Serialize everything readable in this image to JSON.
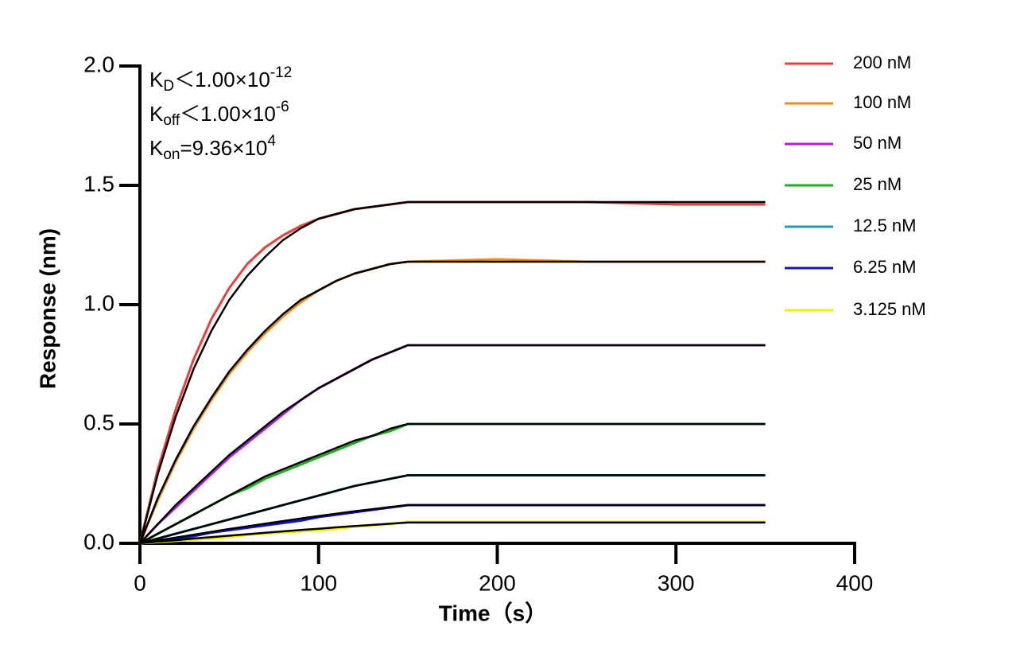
{
  "chart_data": {
    "type": "line",
    "x_label": "Time（s）",
    "y_label": "Response (nm)",
    "xlim": [
      0,
      400
    ],
    "ylim": [
      0,
      2.0
    ],
    "xticks": [
      0,
      100,
      200,
      300,
      400
    ],
    "yticks": [
      {
        "value": 0,
        "label": "0.0"
      },
      0.5,
      {
        "value": 1.0,
        "label": "1.0"
      },
      1.5,
      {
        "value": 2.0,
        "label": "2.0"
      }
    ],
    "annotations": [
      {
        "k": "K",
        "sub": "D",
        "rel": "＜1.00×10",
        "sup": "-12"
      },
      {
        "k": "K",
        "sub": "off",
        "rel": "＜1.00×10",
        "sup": "-6"
      },
      {
        "k": "K",
        "sub": "on",
        "rel": "=9.36×10",
        "sup": "4"
      }
    ],
    "x": [
      0,
      10,
      20,
      30,
      40,
      50,
      60,
      70,
      80,
      90,
      100,
      110,
      120,
      130,
      140,
      150,
      200,
      250,
      300,
      350
    ],
    "series": [
      {
        "name": "200 nM",
        "color": "#e8413c",
        "values": [
          0,
          0.31,
          0.56,
          0.77,
          0.94,
          1.07,
          1.17,
          1.24,
          1.29,
          1.33,
          1.36,
          1.38,
          1.4,
          1.41,
          1.42,
          1.43,
          1.43,
          1.43,
          1.42,
          1.42
        ]
      },
      {
        "name": "100 nM",
        "color": "#f08a1c",
        "values": [
          0,
          0.18,
          0.34,
          0.48,
          0.6,
          0.71,
          0.8,
          0.88,
          0.95,
          1.01,
          1.06,
          1.1,
          1.13,
          1.15,
          1.17,
          1.18,
          1.19,
          1.18,
          1.18,
          1.18
        ]
      },
      {
        "name": "50 nM",
        "color": "#b020d8",
        "values": [
          0,
          0.08,
          0.15,
          0.22,
          0.29,
          0.36,
          0.42,
          0.48,
          0.54,
          0.6,
          0.65,
          0.69,
          0.73,
          0.77,
          0.8,
          0.83,
          0.83,
          0.83,
          0.83,
          0.83
        ]
      },
      {
        "name": "25 nM",
        "color": "#1fae1f",
        "values": [
          0,
          0.04,
          0.08,
          0.12,
          0.16,
          0.2,
          0.23,
          0.27,
          0.3,
          0.33,
          0.36,
          0.39,
          0.42,
          0.45,
          0.47,
          0.5,
          0.5,
          0.5,
          0.5,
          0.5
        ]
      },
      {
        "name": "12.5 nM",
        "color": "#1e9bb5",
        "values": [
          0,
          0.02,
          0.04,
          0.06,
          0.08,
          0.1,
          0.12,
          0.14,
          0.16,
          0.18,
          0.2,
          0.22,
          0.24,
          0.255,
          0.27,
          0.285,
          0.285,
          0.285,
          0.285,
          0.285
        ]
      },
      {
        "name": "6.25 nM",
        "color": "#1010d0",
        "values": [
          0,
          0.01,
          0.02,
          0.03,
          0.045,
          0.055,
          0.065,
          0.075,
          0.085,
          0.095,
          0.11,
          0.12,
          0.13,
          0.14,
          0.15,
          0.16,
          0.16,
          0.16,
          0.16,
          0.16
        ]
      },
      {
        "name": "3.125 nM",
        "color": "#f0f000",
        "values": [
          0,
          0.005,
          0.01,
          0.015,
          0.02,
          0.025,
          0.035,
          0.04,
          0.045,
          0.05,
          0.055,
          0.06,
          0.07,
          0.075,
          0.08,
          0.09,
          0.09,
          0.09,
          0.09,
          0.09
        ]
      }
    ],
    "fits": [
      {
        "color": "#000000",
        "values": [
          0,
          0.29,
          0.53,
          0.73,
          0.89,
          1.02,
          1.12,
          1.2,
          1.27,
          1.32,
          1.36,
          1.38,
          1.4,
          1.41,
          1.42,
          1.43,
          1.43,
          1.43,
          1.43,
          1.43
        ]
      },
      {
        "color": "#000000",
        "values": [
          0,
          0.19,
          0.35,
          0.49,
          0.61,
          0.72,
          0.81,
          0.89,
          0.96,
          1.02,
          1.06,
          1.1,
          1.13,
          1.15,
          1.17,
          1.18,
          1.18,
          1.18,
          1.18,
          1.18
        ]
      },
      {
        "color": "#000000",
        "values": [
          0,
          0.08,
          0.16,
          0.23,
          0.3,
          0.37,
          0.43,
          0.49,
          0.55,
          0.6,
          0.65,
          0.69,
          0.73,
          0.77,
          0.8,
          0.83,
          0.83,
          0.83,
          0.83,
          0.83
        ]
      },
      {
        "color": "#000000",
        "values": [
          0,
          0.04,
          0.08,
          0.12,
          0.16,
          0.2,
          0.24,
          0.28,
          0.31,
          0.34,
          0.37,
          0.4,
          0.43,
          0.45,
          0.48,
          0.5,
          0.5,
          0.5,
          0.5,
          0.5
        ]
      },
      {
        "color": "#000000",
        "values": [
          0,
          0.02,
          0.04,
          0.06,
          0.08,
          0.1,
          0.12,
          0.14,
          0.16,
          0.18,
          0.2,
          0.22,
          0.24,
          0.255,
          0.27,
          0.285,
          0.285,
          0.285,
          0.285,
          0.285
        ]
      },
      {
        "color": "#000000",
        "values": [
          0,
          0.012,
          0.024,
          0.036,
          0.048,
          0.06,
          0.071,
          0.082,
          0.093,
          0.104,
          0.114,
          0.124,
          0.134,
          0.143,
          0.152,
          0.16,
          0.16,
          0.16,
          0.16,
          0.16
        ]
      },
      {
        "color": "#000000",
        "values": [
          0,
          0.007,
          0.013,
          0.02,
          0.026,
          0.032,
          0.038,
          0.044,
          0.05,
          0.056,
          0.061,
          0.067,
          0.072,
          0.077,
          0.082,
          0.087,
          0.087,
          0.087,
          0.087,
          0.087
        ]
      }
    ]
  }
}
